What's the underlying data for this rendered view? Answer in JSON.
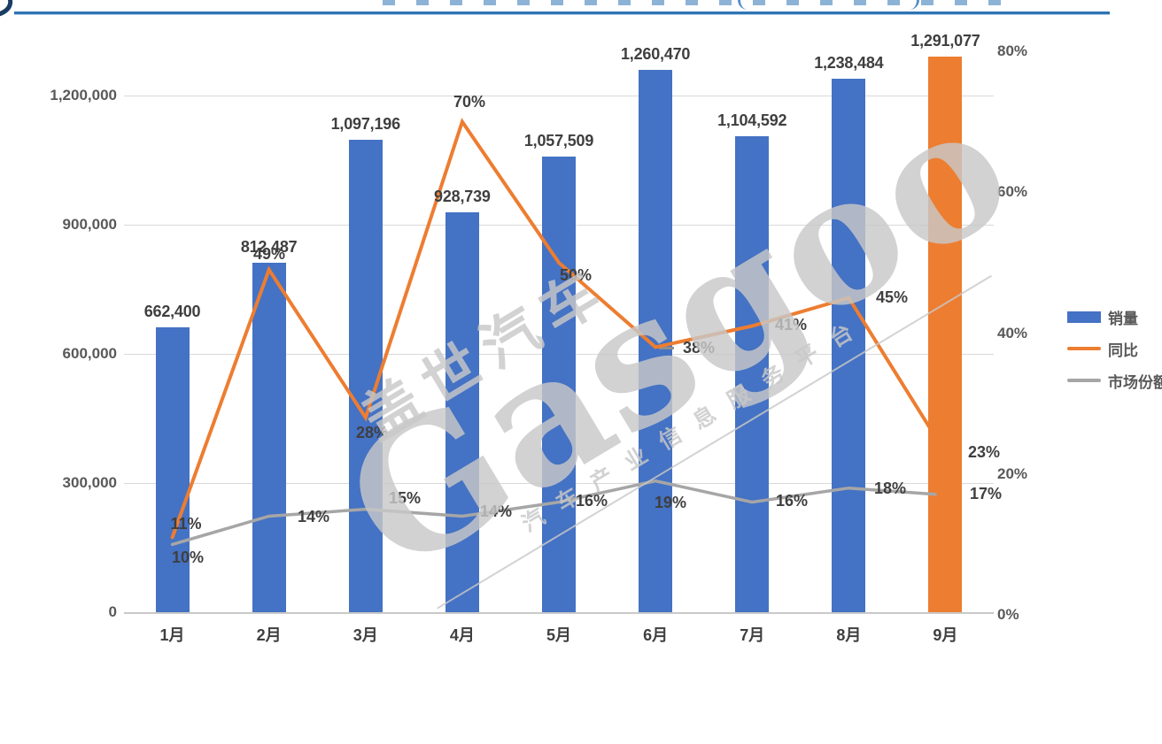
{
  "header": {
    "underline_color": "#2E74B5"
  },
  "chart_data": {
    "type": "combo",
    "categories": [
      "1月",
      "2月",
      "3月",
      "4月",
      "5月",
      "6月",
      "7月",
      "8月",
      "9月"
    ],
    "series": [
      {
        "name": "销量",
        "type": "bar",
        "axis": "left",
        "values": [
          662400,
          812487,
          1097196,
          928739,
          1057509,
          1260470,
          1104592,
          1238484,
          1291077
        ],
        "labels": [
          "662,400",
          "812,487",
          "1,097,196",
          "928,739",
          "1,057,509",
          "1,260,470",
          "1,104,592",
          "1,238,484",
          "1,291,077"
        ],
        "colors": [
          "#4472C4",
          "#4472C4",
          "#4472C4",
          "#4472C4",
          "#4472C4",
          "#4472C4",
          "#4472C4",
          "#4472C4",
          "#ED7D31"
        ]
      },
      {
        "name": "同比",
        "type": "line",
        "axis": "right",
        "values": [
          11,
          49,
          28,
          70,
          50,
          38,
          41,
          45,
          23
        ],
        "labels": [
          "11%",
          "49%",
          "28%",
          "70%",
          "50%",
          "38%",
          "41%",
          "45%",
          "23%"
        ],
        "color": "#ED7D31"
      },
      {
        "name": "市场份额",
        "type": "line",
        "axis": "right",
        "values": [
          10,
          14,
          15,
          14,
          16,
          19,
          16,
          18,
          17
        ],
        "labels": [
          "10%",
          "14%",
          "15%",
          "14%",
          "16%",
          "19%",
          "16%",
          "18%",
          "17%"
        ],
        "color": "#A6A6A6"
      }
    ],
    "left_axis": {
      "ticks": [
        "0",
        "300,000",
        "600,000",
        "900,000",
        "1,200,000"
      ],
      "values": [
        0,
        300000,
        600000,
        900000,
        1200000
      ],
      "range": [
        0,
        1200000
      ]
    },
    "right_axis": {
      "ticks": [
        "0%",
        "20%",
        "40%",
        "60%",
        "80%"
      ],
      "values": [
        0,
        20,
        40,
        60,
        80
      ],
      "range": [
        0,
        80
      ]
    },
    "grid": true,
    "legend_position": "right"
  },
  "legend": {
    "items": [
      {
        "label": "销量",
        "color": "#4472C4",
        "marker": "bar"
      },
      {
        "label": "同比",
        "color": "#ED7D31",
        "marker": "line"
      },
      {
        "label": "市场份额",
        "color": "#A6A6A6",
        "marker": "line"
      }
    ]
  },
  "watermark": {
    "line1": "盖世汽车",
    "line2": "Gasgoo",
    "line3": "汽车产业信息服务平台",
    "color": "#C8C8C8"
  },
  "colors": {
    "bar_blue": "#4472C4",
    "bar_highlight_orange": "#ED7D31",
    "yoy_line": "#ED7D31",
    "share_line": "#A6A6A6",
    "gridline": "#D9D9D9",
    "data_label": "#3F3F3F",
    "axis_label": "#595959",
    "title_underline": "#2E74B5"
  }
}
